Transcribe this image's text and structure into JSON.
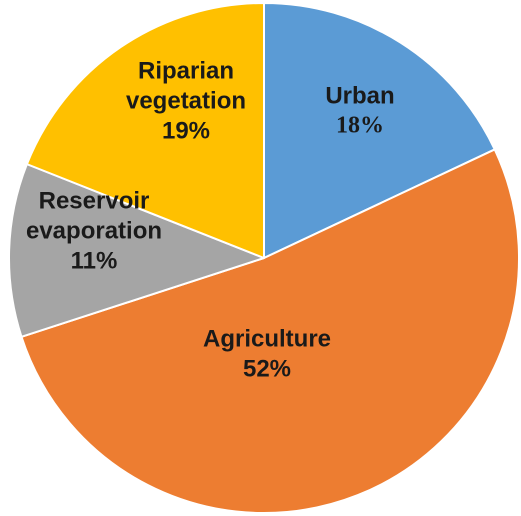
{
  "chart_data": {
    "type": "pie",
    "title": "",
    "slices": [
      {
        "name": "Urban",
        "percent_label": "18%",
        "value": 18,
        "color": "#5b9bd5"
      },
      {
        "name": "Agriculture",
        "percent_label": "52%",
        "value": 52,
        "color": "#ed7d31"
      },
      {
        "name": "Reservoir evaporation",
        "name_lines": [
          "Reservoir",
          "evaporation"
        ],
        "percent_label": "11%",
        "value": 11,
        "color": "#a5a5a5"
      },
      {
        "name": "Riparian vegetation",
        "name_lines": [
          "Riparian",
          "vegetation"
        ],
        "percent_label": "19%",
        "value": 19,
        "color": "#ffc000"
      }
    ],
    "start_angle": "12 o'clock",
    "direction": "clockwise",
    "legend": "none"
  }
}
